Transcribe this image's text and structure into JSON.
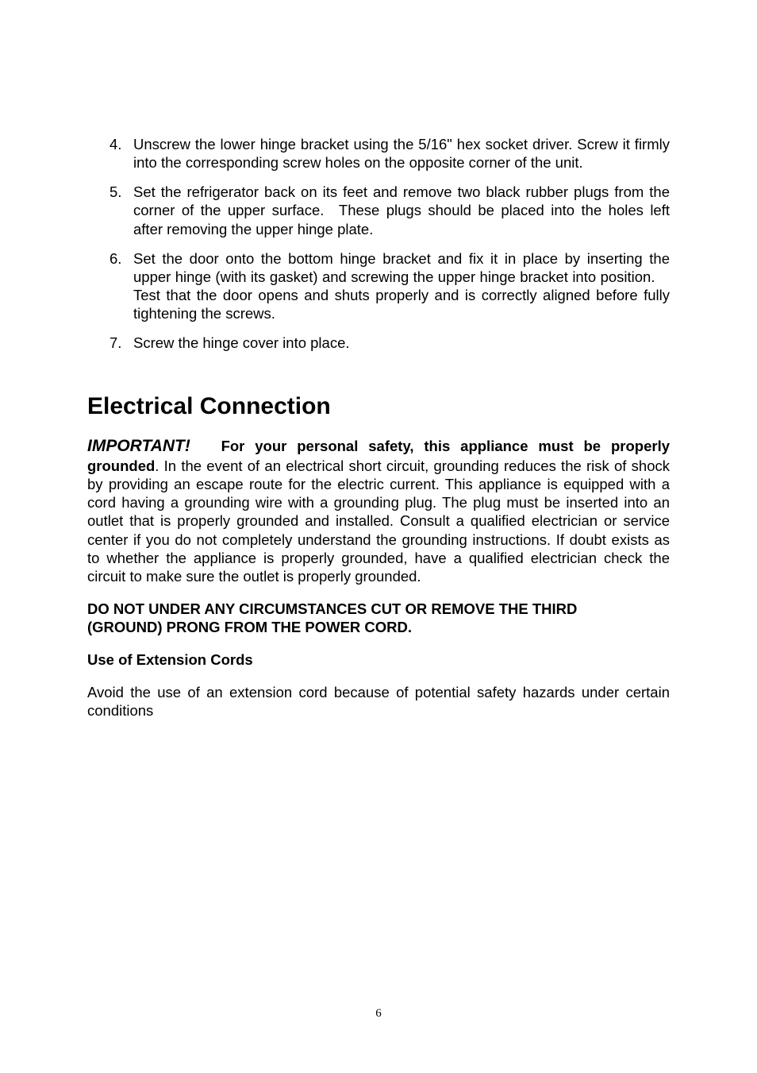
{
  "list": {
    "start": 4,
    "items": [
      {
        "n": "4.",
        "t": "Unscrew the lower hinge bracket using the 5/16\" hex socket driver. Screw it firmly into the corresponding screw holes on the opposite corner of the unit."
      },
      {
        "n": "5.",
        "t": "Set the refrigerator back on its feet and remove two black rubber plugs from the corner of the upper surface. These plugs should be placed into the holes left after removing the upper hinge plate."
      },
      {
        "n": "6.",
        "t": "Set the door onto the bottom hinge bracket and fix it in place by inserting the upper hinge (with its gasket) and screwing the upper hinge bracket into position. Test that the door opens and shuts properly and is correctly aligned before fully tightening the screws."
      },
      {
        "n": "7.",
        "t": "Screw the hinge cover into place."
      }
    ]
  },
  "section_title": "Electrical Connection",
  "important_label": "IMPORTANT!",
  "important_lead": "For your personal safety, this appliance must be properly grounded",
  "important_body": ". In the event of an electrical short circuit, grounding reduces the risk of shock by providing an escape route for the electric current. This appliance is equipped with a cord having a grounding wire with a grounding plug. The plug must be inserted into an outlet that is properly grounded and installed. Consult a qualified electrician or service center if you do not completely understand the grounding instructions. If doubt exists as to whether the appliance is properly grounded, have a qualified electrician check the circuit to make sure the outlet is properly grounded.",
  "warning_line1": "DO NOT UNDER ANY CIRCUMSTANCES CUT OR REMOVE THE THIRD",
  "warning_line2": "(GROUND) PRONG FROM THE POWER CORD.",
  "subheading": "Use of Extension Cords",
  "ext_body": "Avoid the use of an extension cord because of potential safety hazards under certain conditions",
  "page_number": "6"
}
